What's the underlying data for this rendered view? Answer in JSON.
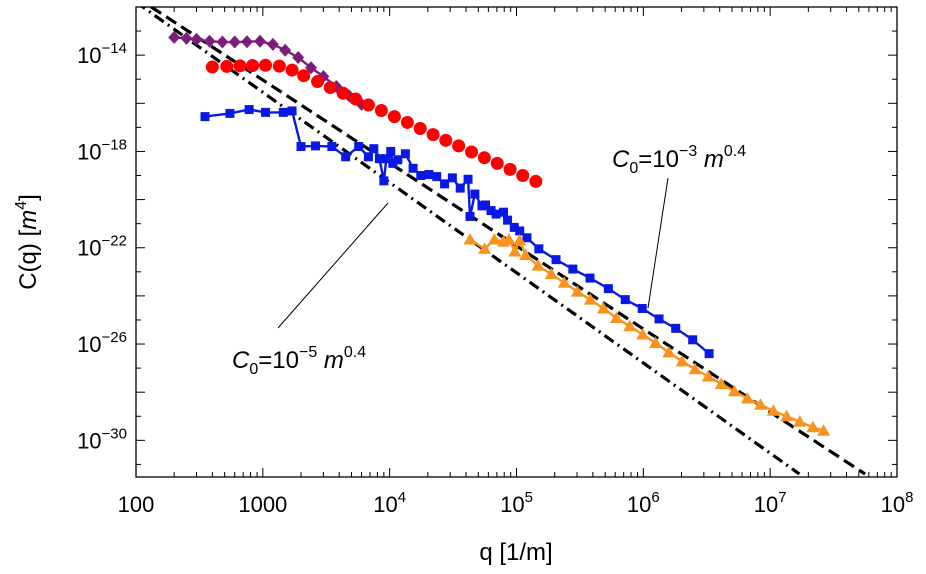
{
  "chart_data": {
    "type": "scatter",
    "xscale": "log",
    "yscale": "log",
    "xlim": [
      100,
      100000000
    ],
    "ylim": [
      3e-32,
      1e-12
    ],
    "grid": false,
    "xlabel": "q [1/m]",
    "ylabel_prefix": "C(q) [",
    "ylabel_unit": "m",
    "ylabel_exp": "4",
    "ylabel_suffix": "]",
    "x_ticks": [
      {
        "value": 100,
        "mant": "100",
        "exp": ""
      },
      {
        "value": 1000,
        "mant": "1000",
        "exp": ""
      },
      {
        "value": 10000,
        "mant": "10",
        "exp": "4"
      },
      {
        "value": 100000,
        "mant": "10",
        "exp": "5"
      },
      {
        "value": 1000000,
        "mant": "10",
        "exp": "6"
      },
      {
        "value": 10000000,
        "mant": "10",
        "exp": "7"
      },
      {
        "value": 100000000,
        "mant": "10",
        "exp": "8"
      }
    ],
    "y_ticks": [
      {
        "value": 1e-14,
        "mant": "10",
        "exp": "−14"
      },
      {
        "value": 1e-18,
        "mant": "10",
        "exp": "−18"
      },
      {
        "value": 1e-22,
        "mant": "10",
        "exp": "−22"
      },
      {
        "value": 1e-26,
        "mant": "10",
        "exp": "−26"
      },
      {
        "value": 1e-30,
        "mant": "10",
        "exp": "−30"
      }
    ],
    "reference_lines": [
      {
        "style": "dashed",
        "label_c": "C",
        "label_sub": "0",
        "label_eq": "=10",
        "label_exp": "−3",
        "label_m": "m",
        "label_pow": "0.4",
        "points": [
          [
            100,
            2.6e-12
          ],
          [
            56000000,
            4e-32
          ]
        ]
      },
      {
        "style": "dashdot",
        "label_c": "C",
        "label_sub": "0",
        "label_eq": "=10",
        "label_exp": "−5",
        "label_m": "m",
        "label_pow": "0.4",
        "points": [
          [
            100,
            1.6e-12
          ],
          [
            17000000,
            4e-32
          ]
        ]
      }
    ],
    "series": [
      {
        "color": "#7b1e7a",
        "marker": "diamond",
        "line": true,
        "x": [
          200,
          250,
          300,
          380,
          480,
          600,
          750,
          950,
          1200,
          1500,
          1900,
          2400,
          3000,
          3800,
          4800,
          6000
        ],
        "y": [
          5.5e-14,
          5e-14,
          4.5e-14,
          3.8e-14,
          3.5e-14,
          3.5e-14,
          3.6e-14,
          3.8e-14,
          2.8e-14,
          1.6e-14,
          8e-15,
          3e-15,
          1.3e-15,
          5e-16,
          2e-16,
          9e-17
        ]
      },
      {
        "color": "#ff0000",
        "marker": "circle",
        "line": false,
        "x": [
          400,
          520,
          660,
          830,
          1050,
          1350,
          1700,
          2100,
          2700,
          3400,
          4300,
          5400,
          6800,
          8600,
          10900,
          13800,
          17400,
          22000,
          27700,
          35000,
          44200,
          55800,
          70500,
          89000,
          112000,
          142000
        ],
        "y": [
          3.2e-15,
          3.4e-15,
          3.6e-15,
          3.7e-15,
          3.8e-15,
          3.5e-15,
          2.4e-15,
          1.4e-15,
          8e-16,
          4.5e-16,
          2.6e-16,
          1.5e-16,
          8.5e-17,
          5e-17,
          2.8e-17,
          1.6e-17,
          9e-18,
          5e-18,
          2.9e-18,
          1.7e-18,
          9.5e-19,
          5.5e-19,
          3.2e-19,
          1.8e-19,
          1e-19,
          5.7e-20
        ]
      },
      {
        "color": "#0a18e6",
        "marker": "square",
        "line": true,
        "x": [
          350,
          550,
          780,
          1050,
          1450,
          1700,
          2000,
          2600,
          3500,
          4500,
          5700,
          6800,
          7500,
          8300,
          9000,
          9400,
          10200,
          10600,
          11600,
          13300,
          15300,
          17600,
          20400,
          23500,
          27100,
          31200,
          36000,
          41500,
          43000,
          47000,
          53400,
          57000,
          63000,
          69000,
          79000,
          85000,
          96000,
          106000,
          121000,
          150000,
          205000,
          278000,
          380000,
          530000,
          720000,
          980000,
          1330000,
          1800000,
          2450000,
          3300000
        ],
        "y": [
          2.8e-17,
          3.8e-17,
          5.5e-17,
          4.2e-17,
          4.2e-17,
          4.8e-17,
          1.6e-18,
          1.7e-18,
          1.6e-18,
          6e-19,
          1.6e-18,
          6e-19,
          1.3e-18,
          5e-19,
          6e-20,
          5e-19,
          1e-18,
          3.2e-19,
          4.5e-19,
          8e-19,
          2e-19,
          1e-19,
          1.1e-19,
          9e-20,
          4.5e-20,
          8e-20,
          3e-20,
          7e-20,
          2e-21,
          1.7e-20,
          5.5e-21,
          6e-21,
          3.5e-21,
          2.5e-21,
          3e-21,
          1.4e-21,
          7e-22,
          5e-22,
          2.6e-22,
          9e-23,
          3.2e-23,
          1.3e-23,
          5.5e-24,
          2e-24,
          7e-25,
          3e-25,
          1.1e-25,
          4.5e-26,
          1.5e-26,
          4e-27
        ]
      },
      {
        "color": "#f7931e",
        "marker": "triangle",
        "line": true,
        "x": [
          43000,
          56000,
          67000,
          79000,
          87000,
          97000,
          106000,
          118000,
          148000,
          188000,
          238000,
          302000,
          382000,
          485000,
          615000,
          780000,
          990000,
          1250000,
          1590000,
          2020000,
          2560000,
          3250000,
          4120000,
          5220000,
          6620000,
          8400000,
          10600000,
          13500000,
          17100000,
          21700000,
          26400000
        ],
        "y": [
          2.2e-22,
          9e-23,
          2.2e-22,
          1.8e-22,
          2.2e-22,
          7e-23,
          2e-22,
          5e-23,
          1.8e-23,
          8e-24,
          3.5e-24,
          1.5e-24,
          7e-25,
          3e-25,
          1.2e-25,
          5.5e-26,
          2.5e-26,
          1.1e-26,
          4.5e-27,
          1.9e-27,
          9e-28,
          4.5e-28,
          2.2e-28,
          1.1e-28,
          5.5e-29,
          3e-29,
          1.7e-29,
          1e-29,
          6e-30,
          3.5e-30,
          2.5e-30
        ]
      }
    ]
  }
}
